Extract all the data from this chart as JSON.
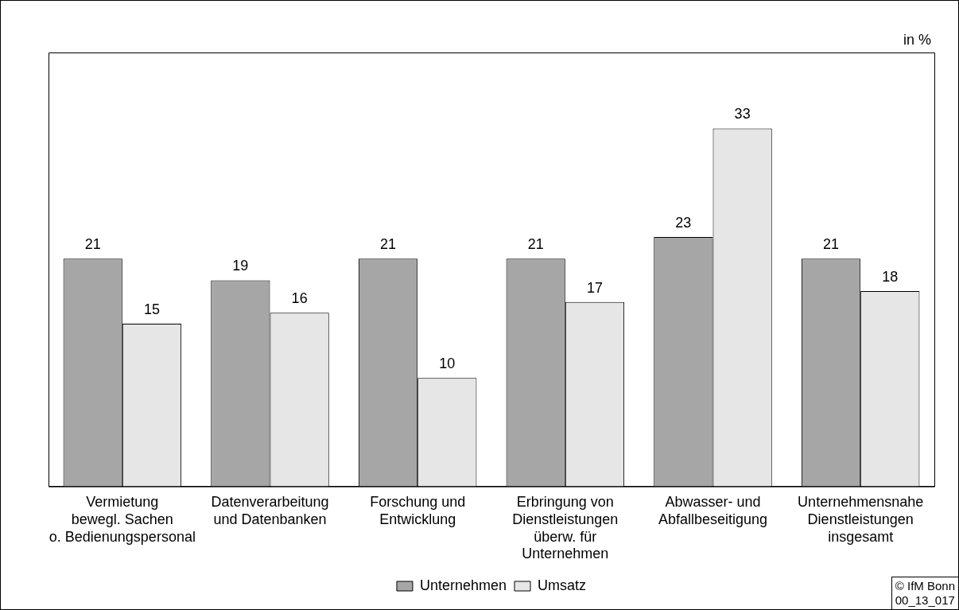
{
  "chart_data": {
    "type": "bar",
    "ylabel": "in %",
    "categories": [
      "Vermietung\nbewegl. Sachen\no. Bedienungspersonal",
      "Datenverarbeitung\nund Datenbanken",
      "Forschung und\nEntwicklung",
      "Erbringung von\nDienstleistungen\nüberw. für\nUnternehmen",
      "Abwasser- und\nAbfallbeseitigung",
      "Unternehmensnahe\nDienstleistungen\ninsgesamt"
    ],
    "series": [
      {
        "name": "Unternehmen",
        "color": "#a6a6a6",
        "values": [
          21,
          19,
          21,
          21,
          23,
          21
        ]
      },
      {
        "name": "Umsatz",
        "color": "#e6e6e6",
        "values": [
          15,
          16,
          10,
          17,
          33,
          18
        ]
      }
    ],
    "ylim": [
      0,
      40
    ],
    "tick_labels": "x",
    "data_labels": true,
    "grid": false,
    "legend": "bottom",
    "annotations": [
      "© IfM Bonn",
      "00_13_017"
    ]
  }
}
